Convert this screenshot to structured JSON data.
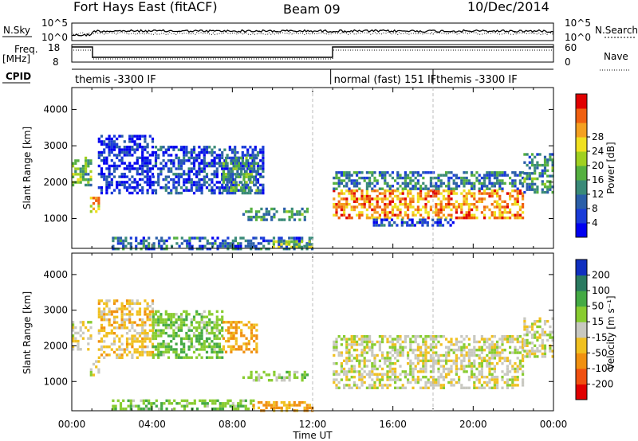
{
  "header": {
    "site": "Fort Hays East (fitACF)",
    "beam": "Beam 09",
    "date": "10/Dec/2014"
  },
  "top_panel": {
    "nsky_label": "N.Sky",
    "nsearch_label": "N.Search",
    "nsky_ticks": [
      "10^5",
      "10^0"
    ],
    "nsearch_ticks": [
      "10^5",
      "10^0"
    ],
    "freq_label": "Freq.",
    "freq_unit": "[MHz]",
    "freq_ticks": [
      "18",
      "8"
    ],
    "nave_label": "Nave",
    "nave_ticks": [
      "60",
      "0"
    ],
    "cpid_label": "CPID"
  },
  "control_programs": [
    {
      "label": "themis -3300 IF",
      "start_hour": 0,
      "end_hour": 12.9
    },
    {
      "label": "normal (fast) 151 IF",
      "start_hour": 12.9,
      "end_hour": 18
    },
    {
      "label": "themis -3300 IF",
      "start_hour": 18,
      "end_hour": 24
    }
  ],
  "chart_data": [
    {
      "type": "heatmap",
      "name": "power",
      "ylabel": "Slant Range [km]",
      "xlim": [
        0,
        24
      ],
      "ylim": [
        180,
        4600
      ],
      "y_ticks": [
        1000,
        2000,
        3000,
        4000
      ],
      "colorbar": {
        "label": "Power [dB]",
        "ticks": [
          "4",
          "8",
          "12",
          "16",
          "20",
          "24",
          "28"
        ],
        "colors": [
          "#0000f0",
          "#1a3cd8",
          "#2b5fa8",
          "#3a8a78",
          "#55b040",
          "#a0d020",
          "#f0e020",
          "#f4a020",
          "#f06010",
          "#e00000"
        ]
      },
      "regions": [
        {
          "hours": [
            0.0,
            0.9
          ],
          "range_km": [
            1900,
            2700
          ],
          "level": 0.45
        },
        {
          "hours": [
            0.9,
            1.4
          ],
          "range_km": [
            1200,
            1600
          ],
          "level": 0.75
        },
        {
          "hours": [
            1.3,
            4.0
          ],
          "range_km": [
            1700,
            3300
          ],
          "level": 0.12
        },
        {
          "hours": [
            4.0,
            9.5
          ],
          "range_km": [
            1700,
            3000
          ],
          "level": 0.18
        },
        {
          "hours": [
            7.5,
            9.2
          ],
          "range_km": [
            1800,
            2700
          ],
          "level": 0.4
        },
        {
          "hours": [
            8.5,
            11.8
          ],
          "range_km": [
            1000,
            1300
          ],
          "level": 0.35
        },
        {
          "hours": [
            13.0,
            22.5
          ],
          "range_km": [
            1000,
            1800
          ],
          "level": 0.78
        },
        {
          "hours": [
            13.0,
            22.5
          ],
          "range_km": [
            1800,
            2300
          ],
          "level": 0.3
        },
        {
          "hours": [
            15.0,
            19.0
          ],
          "range_km": [
            800,
            1000
          ],
          "level": 0.2
        },
        {
          "hours": [
            22.5,
            24.0
          ],
          "range_km": [
            1700,
            2800
          ],
          "level": 0.35
        },
        {
          "hours": [
            2.0,
            12.0
          ],
          "range_km": [
            200,
            500
          ],
          "level": 0.25
        },
        {
          "hours": [
            10.0,
            12.0
          ],
          "range_km": [
            200,
            400
          ],
          "level": 0.5
        }
      ]
    },
    {
      "type": "heatmap",
      "name": "velocity",
      "ylabel": "Slant Range [km]",
      "xlabel": "Time UT",
      "xlim": [
        0,
        24
      ],
      "ylim": [
        180,
        4600
      ],
      "y_ticks": [
        1000,
        2000,
        3000,
        4000
      ],
      "x_ticks": [
        "00:00",
        "04:00",
        "08:00",
        "12:00",
        "16:00",
        "20:00",
        "00:00"
      ],
      "colorbar": {
        "label": "Velocity [m s⁻¹]",
        "ticks": [
          "200",
          "100",
          "50",
          "15",
          "-15",
          "-50",
          "-100",
          "-200"
        ],
        "colors": [
          "#1030c0",
          "#2a7a60",
          "#44aa44",
          "#88cc30",
          "#c8c8c0",
          "#f0c020",
          "#f09010",
          "#f05010",
          "#e00000"
        ]
      },
      "regions": [
        {
          "hours": [
            0.0,
            0.9
          ],
          "range_km": [
            1900,
            2700
          ],
          "value": 0
        },
        {
          "hours": [
            0.9,
            1.4
          ],
          "range_km": [
            1200,
            1600
          ],
          "value": 0
        },
        {
          "hours": [
            1.3,
            4.0
          ],
          "range_km": [
            1700,
            3300
          ],
          "value": -30
        },
        {
          "hours": [
            4.0,
            7.5
          ],
          "range_km": [
            1700,
            3000
          ],
          "value": 40
        },
        {
          "hours": [
            7.5,
            9.2
          ],
          "range_km": [
            1800,
            2700
          ],
          "value": -60
        },
        {
          "hours": [
            8.5,
            11.8
          ],
          "range_km": [
            1000,
            1300
          ],
          "value": 30
        },
        {
          "hours": [
            13.0,
            22.5
          ],
          "range_km": [
            800,
            2300
          ],
          "value": 0
        },
        {
          "hours": [
            22.5,
            24.0
          ],
          "range_km": [
            1700,
            2800
          ],
          "value": 0
        },
        {
          "hours": [
            2.0,
            9.0
          ],
          "range_km": [
            200,
            500
          ],
          "value": 40
        },
        {
          "hours": [
            9.0,
            12.0
          ],
          "range_km": [
            200,
            450
          ],
          "value": -60
        }
      ]
    }
  ]
}
